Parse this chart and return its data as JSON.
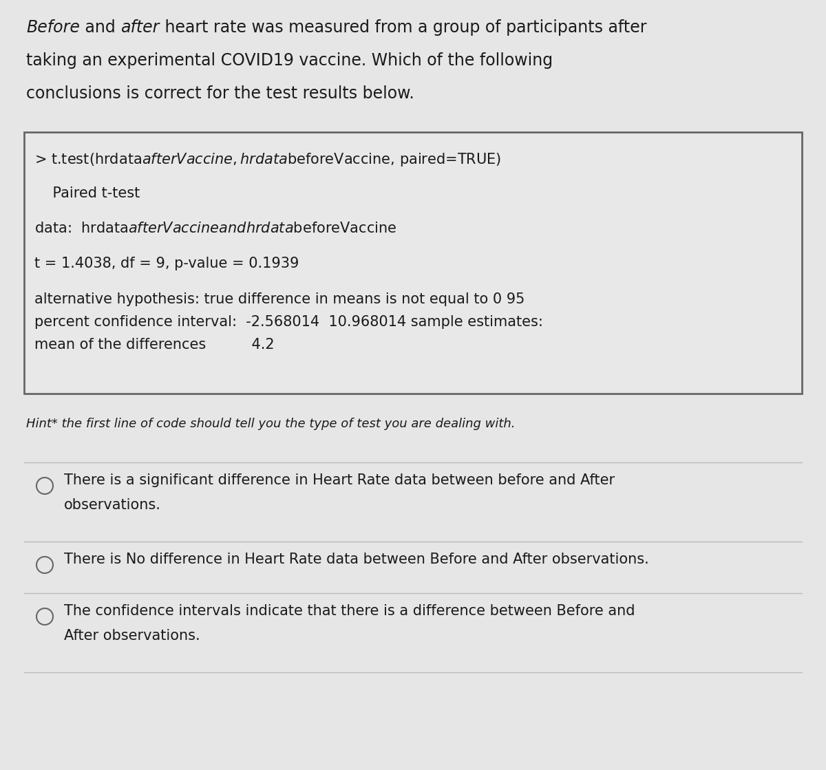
{
  "bg_color": "#e6e6e6",
  "text_color": "#1a1a1a",
  "box_border_color": "#666666",
  "box_bg_color": "#e8e8e8",
  "sep_color": "#bbbbbb",
  "title_line1_parts": [
    {
      "text": "Before",
      "italic": true
    },
    {
      "text": " and ",
      "italic": false
    },
    {
      "text": "after",
      "italic": true
    },
    {
      "text": " heart rate was measured from a group of participants after",
      "italic": false
    }
  ],
  "title_line2": "taking an experimental COVID19 vaccine. Which of the following",
  "title_line3": "conclusions is correct for the test results below.",
  "box_lines": [
    {
      "text": "> t.test(hrdata$afterVaccine, hrdata$beforeVaccine, paired=TRUE)",
      "indent": 0
    },
    {
      "text": "",
      "indent": 0
    },
    {
      "text": "    Paired t-test",
      "indent": 0
    },
    {
      "text": "",
      "indent": 0
    },
    {
      "text": "data:  hrdata$afterVaccine and hrdata$beforeVaccine",
      "indent": 0
    },
    {
      "text": "",
      "indent": 0
    },
    {
      "text": "t = 1.4038, df = 9, p-value = 0.1939",
      "indent": 0
    },
    {
      "text": "",
      "indent": 0
    },
    {
      "text": "alternative hypothesis: true difference in means is not equal to 0 95",
      "indent": 0
    },
    {
      "text": "percent confidence interval:  -2.568014  10.968014 sample estimates:",
      "indent": 0
    },
    {
      "text": "mean of the differences          4.2",
      "indent": 0
    }
  ],
  "hint_text": "Hint* the first line of code should tell you the type of test you are dealing with.",
  "options": [
    [
      "There is a significant difference in Heart Rate data between before and After",
      "observations."
    ],
    [
      "There is No difference in Heart Rate data between Before and After observations."
    ],
    [
      "The confidence intervals indicate that there is a difference between Before and",
      "After observations."
    ]
  ],
  "font_size_title": 17,
  "font_size_box": 15,
  "font_size_hint": 13,
  "font_size_option": 15
}
